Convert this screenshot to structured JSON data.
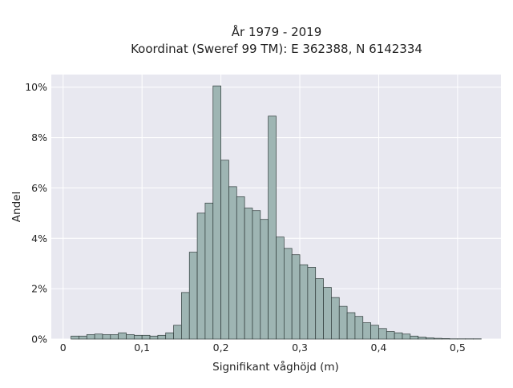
{
  "chart_data": {
    "type": "bar",
    "title_line1": "År 1979 - 2019",
    "title_line2": "Koordinat (Sweref 99 TM): E 362388, N 6142334",
    "xlabel": "Signifikant våghöjd (m)",
    "ylabel": "Andel",
    "xlim": [
      -0.015,
      0.555
    ],
    "ylim": [
      0,
      10.5
    ],
    "bin_width": 0.01,
    "bins": [
      {
        "x": 0.01,
        "y": 0.12
      },
      {
        "x": 0.02,
        "y": 0.12
      },
      {
        "x": 0.03,
        "y": 0.18
      },
      {
        "x": 0.04,
        "y": 0.2
      },
      {
        "x": 0.05,
        "y": 0.18
      },
      {
        "x": 0.06,
        "y": 0.18
      },
      {
        "x": 0.07,
        "y": 0.25
      },
      {
        "x": 0.08,
        "y": 0.18
      },
      {
        "x": 0.09,
        "y": 0.15
      },
      {
        "x": 0.1,
        "y": 0.15
      },
      {
        "x": 0.11,
        "y": 0.12
      },
      {
        "x": 0.12,
        "y": 0.15
      },
      {
        "x": 0.13,
        "y": 0.25
      },
      {
        "x": 0.14,
        "y": 0.55
      },
      {
        "x": 0.15,
        "y": 1.85
      },
      {
        "x": 0.16,
        "y": 3.45
      },
      {
        "x": 0.17,
        "y": 5.0
      },
      {
        "x": 0.18,
        "y": 5.4
      },
      {
        "x": 0.19,
        "y": 10.05
      },
      {
        "x": 0.2,
        "y": 7.1
      },
      {
        "x": 0.21,
        "y": 6.05
      },
      {
        "x": 0.22,
        "y": 5.65
      },
      {
        "x": 0.23,
        "y": 5.2
      },
      {
        "x": 0.24,
        "y": 5.1
      },
      {
        "x": 0.25,
        "y": 4.75
      },
      {
        "x": 0.26,
        "y": 8.85
      },
      {
        "x": 0.27,
        "y": 4.05
      },
      {
        "x": 0.28,
        "y": 3.6
      },
      {
        "x": 0.29,
        "y": 3.35
      },
      {
        "x": 0.3,
        "y": 2.95
      },
      {
        "x": 0.31,
        "y": 2.85
      },
      {
        "x": 0.32,
        "y": 2.4
      },
      {
        "x": 0.33,
        "y": 2.05
      },
      {
        "x": 0.34,
        "y": 1.65
      },
      {
        "x": 0.35,
        "y": 1.3
      },
      {
        "x": 0.36,
        "y": 1.05
      },
      {
        "x": 0.37,
        "y": 0.9
      },
      {
        "x": 0.38,
        "y": 0.65
      },
      {
        "x": 0.39,
        "y": 0.55
      },
      {
        "x": 0.4,
        "y": 0.42
      },
      {
        "x": 0.41,
        "y": 0.3
      },
      {
        "x": 0.42,
        "y": 0.25
      },
      {
        "x": 0.43,
        "y": 0.2
      },
      {
        "x": 0.44,
        "y": 0.12
      },
      {
        "x": 0.45,
        "y": 0.08
      },
      {
        "x": 0.46,
        "y": 0.05
      },
      {
        "x": 0.47,
        "y": 0.03
      },
      {
        "x": 0.48,
        "y": 0.02
      },
      {
        "x": 0.49,
        "y": 0.01
      },
      {
        "x": 0.5,
        "y": 0.01
      },
      {
        "x": 0.51,
        "y": 0.01
      },
      {
        "x": 0.52,
        "y": 0.01
      }
    ],
    "x_ticks": [
      {
        "value": 0,
        "label": "0"
      },
      {
        "value": 0.1,
        "label": "0,1"
      },
      {
        "value": 0.2,
        "label": "0,2"
      },
      {
        "value": 0.3,
        "label": "0,3"
      },
      {
        "value": 0.4,
        "label": "0,4"
      },
      {
        "value": 0.5,
        "label": "0,5"
      }
    ],
    "y_ticks": [
      {
        "value": 0,
        "label": "0%"
      },
      {
        "value": 2,
        "label": "2%"
      },
      {
        "value": 4,
        "label": "4%"
      },
      {
        "value": 6,
        "label": "6%"
      },
      {
        "value": 8,
        "label": "8%"
      },
      {
        "value": 10,
        "label": "10%"
      }
    ],
    "grid": true,
    "legend": "none",
    "colors": {
      "bar_fill": "#9eb5b3",
      "bar_stroke": "#2f3b3a",
      "plot_background": "#e8e8f0",
      "grid": "#ffffff",
      "page_background": "#ffffff"
    }
  }
}
